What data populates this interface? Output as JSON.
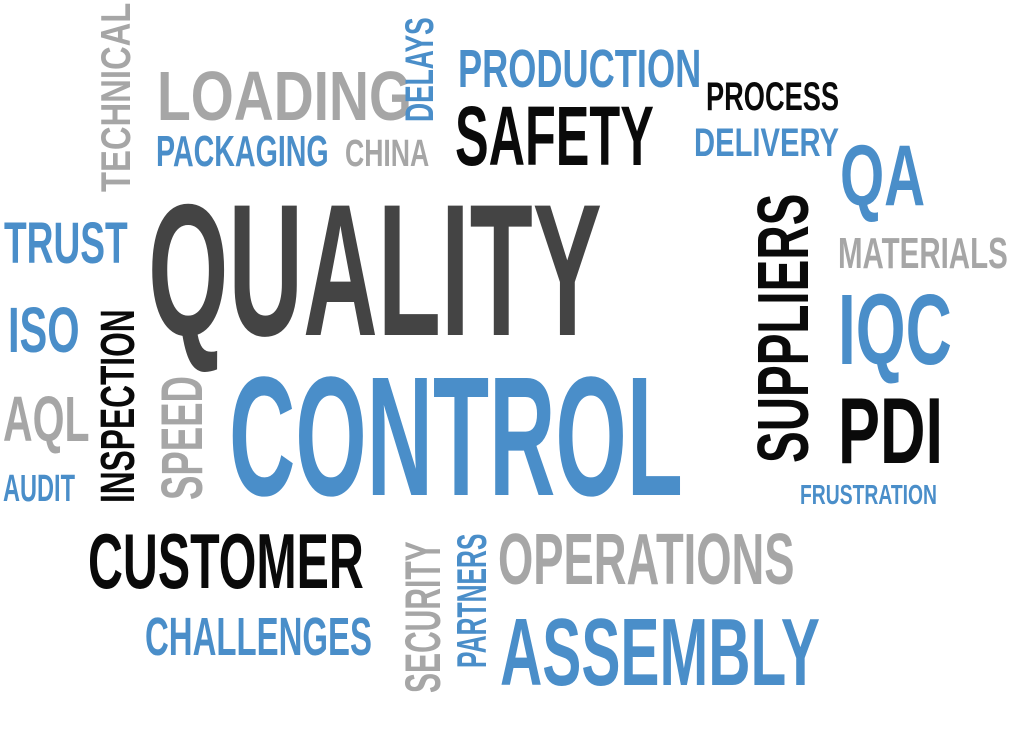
{
  "colors": {
    "blue": "#4a8ec9",
    "dark": "#444444",
    "black": "#0a0a0a",
    "gray": "#a6a6a6"
  },
  "words": [
    {
      "key": "technical",
      "text": "TECHNICAL",
      "color": "gray",
      "orientation": "vertical"
    },
    {
      "key": "loading",
      "text": "LOADING",
      "color": "gray",
      "orientation": "horizontal"
    },
    {
      "key": "delays",
      "text": "DELAYS",
      "color": "blue",
      "orientation": "vertical"
    },
    {
      "key": "production",
      "text": "PRODUCTION",
      "color": "blue",
      "orientation": "horizontal"
    },
    {
      "key": "process",
      "text": "PROCESS",
      "color": "black",
      "orientation": "horizontal"
    },
    {
      "key": "packaging",
      "text": "PACKAGING",
      "color": "blue",
      "orientation": "horizontal"
    },
    {
      "key": "china",
      "text": "CHINA",
      "color": "gray",
      "orientation": "horizontal"
    },
    {
      "key": "safety",
      "text": "SAFETY",
      "color": "black",
      "orientation": "horizontal"
    },
    {
      "key": "delivery",
      "text": "DELIVERY",
      "color": "blue",
      "orientation": "horizontal"
    },
    {
      "key": "qa",
      "text": "QA",
      "color": "blue",
      "orientation": "horizontal"
    },
    {
      "key": "trust",
      "text": "TRUST",
      "color": "blue",
      "orientation": "horizontal"
    },
    {
      "key": "quality",
      "text": "QUALITY",
      "color": "dark",
      "orientation": "horizontal"
    },
    {
      "key": "suppliers",
      "text": "SUPPLIERS",
      "color": "black",
      "orientation": "vertical"
    },
    {
      "key": "materials",
      "text": "MATERIALS",
      "color": "gray",
      "orientation": "horizontal"
    },
    {
      "key": "iso",
      "text": "ISO",
      "color": "blue",
      "orientation": "horizontal"
    },
    {
      "key": "inspection",
      "text": "INSPECTION",
      "color": "black",
      "orientation": "vertical"
    },
    {
      "key": "speed",
      "text": "SPEED",
      "color": "gray",
      "orientation": "vertical"
    },
    {
      "key": "iqc",
      "text": "IQC",
      "color": "blue",
      "orientation": "horizontal"
    },
    {
      "key": "control",
      "text": "CONTROL",
      "color": "blue",
      "orientation": "horizontal"
    },
    {
      "key": "aql",
      "text": "AQL",
      "color": "gray",
      "orientation": "horizontal"
    },
    {
      "key": "pdi",
      "text": "PDI",
      "color": "black",
      "orientation": "horizontal"
    },
    {
      "key": "audit",
      "text": "AUDIT",
      "color": "blue",
      "orientation": "horizontal"
    },
    {
      "key": "frustration",
      "text": "FRUSTRATION",
      "color": "blue",
      "orientation": "horizontal"
    },
    {
      "key": "customer",
      "text": "CUSTOMER",
      "color": "black",
      "orientation": "horizontal"
    },
    {
      "key": "security",
      "text": "SECURITY",
      "color": "gray",
      "orientation": "vertical"
    },
    {
      "key": "partners",
      "text": "PARTNERS",
      "color": "blue",
      "orientation": "vertical"
    },
    {
      "key": "operations",
      "text": "OPERATIONS",
      "color": "gray",
      "orientation": "horizontal"
    },
    {
      "key": "challenges",
      "text": "CHALLENGES",
      "color": "blue",
      "orientation": "horizontal"
    },
    {
      "key": "assembly",
      "text": "ASSEMBLY",
      "color": "blue",
      "orientation": "horizontal"
    }
  ]
}
